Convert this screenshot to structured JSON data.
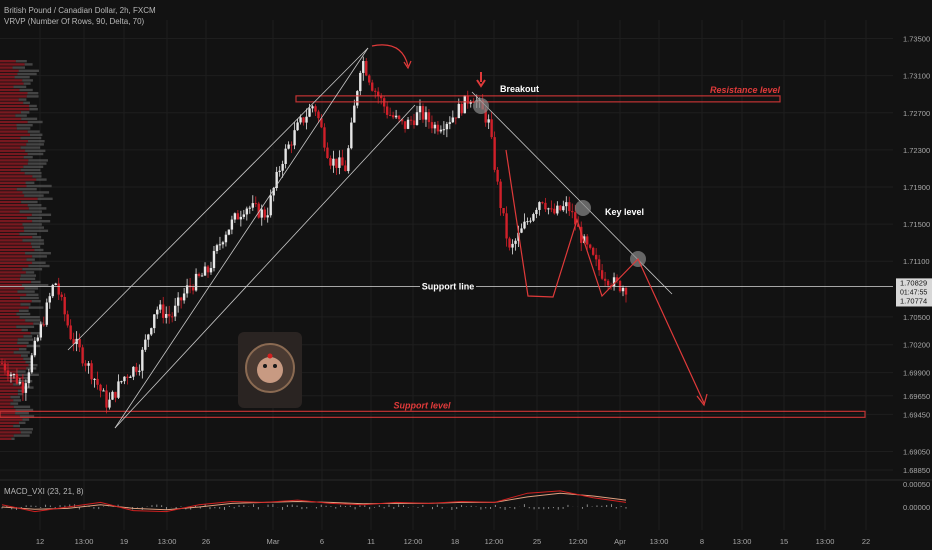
{
  "header": {
    "symbol_line": "British Pound / Canadian Dollar, 2h, FXCM",
    "indicator_line": "VRVP (Number Of Rows, 90, Delta, 70)",
    "macd_label": "MACD_VXI (23, 21, 8)"
  },
  "colors": {
    "background": "#121212",
    "up_candle": "#e6e6e6",
    "down_candle": "#d0202a",
    "annotation_red": "#e03a3a",
    "trend_line": "#c8c8c8",
    "grid": "#1e1e1e"
  },
  "chart_data": {
    "type": "candlestick",
    "ylim": [
      1.6885,
      1.737
    ],
    "y_ticks": [
      "1.73500",
      "1.73100",
      "1.72700",
      "1.72300",
      "1.71900",
      "1.71500",
      "1.71100",
      "1.70500",
      "1.70200",
      "1.69900",
      "1.69650",
      "1.69450",
      "1.69050",
      "1.68850"
    ],
    "x_ticks": [
      "12",
      "13:00",
      "19",
      "13:00",
      "26",
      "Mar",
      "6",
      "11",
      "12:00",
      "18",
      "12:00",
      "25",
      "12:00",
      "Apr",
      "13:00",
      "8",
      "13:00",
      "15",
      "13:00",
      "22"
    ],
    "price_labels": {
      "current": "1.70829",
      "countdown": "01:47:55",
      "low": "1.70774"
    },
    "price_path": [
      [
        0,
        1.7
      ],
      [
        4,
        1.6975
      ],
      [
        8,
        1.705
      ],
      [
        10,
        1.709
      ],
      [
        13,
        1.703
      ],
      [
        17,
        1.699
      ],
      [
        20,
        1.6955
      ],
      [
        23,
        1.6985
      ],
      [
        26,
        1.7
      ],
      [
        29,
        1.706
      ],
      [
        32,
        1.705
      ],
      [
        35,
        1.708
      ],
      [
        39,
        1.71
      ],
      [
        42,
        1.714
      ],
      [
        46,
        1.717
      ],
      [
        50,
        1.716
      ],
      [
        53,
        1.722
      ],
      [
        56,
        1.7255
      ],
      [
        59,
        1.728
      ],
      [
        62,
        1.722
      ],
      [
        65,
        1.721
      ],
      [
        68,
        1.733
      ],
      [
        70,
        1.73
      ],
      [
        73,
        1.727
      ],
      [
        76,
        1.7255
      ],
      [
        79,
        1.727
      ],
      [
        82,
        1.7255
      ],
      [
        85,
        1.7265
      ],
      [
        89,
        1.729
      ],
      [
        92,
        1.726
      ],
      [
        94,
        1.718
      ],
      [
        96,
        1.712
      ],
      [
        99,
        1.715
      ],
      [
        102,
        1.718
      ],
      [
        104,
        1.716
      ],
      [
        107,
        1.717
      ],
      [
        110,
        1.713
      ],
      [
        113,
        1.71
      ],
      [
        116,
        1.7085
      ],
      [
        118,
        1.7082
      ]
    ],
    "annotations": {
      "resistance": {
        "label": "Resistance level",
        "y": 1.7285
      },
      "support": {
        "label": "Support level",
        "y": 1.6945
      },
      "support_line": {
        "label": "Support line",
        "y": 1.70829
      },
      "breakout": {
        "label": "Breakout"
      },
      "key_level": {
        "label": "Key level"
      }
    },
    "macd": {
      "ylim": [
        -0.005,
        0.005
      ],
      "y_ticks": [
        "0.00050",
        "0.00000"
      ],
      "macd_line": [
        5e-05,
        -0.0001,
        0.0,
        0.0001,
        -8e-05,
        -0.0001,
        5e-05,
        0.00012,
        0.0001,
        0.00015,
        8e-05,
        5e-05,
        0.0001,
        8e-05,
        0.00012,
        0.0001,
        0.0003,
        0.00035,
        0.0002,
        0.0001
      ],
      "signal_line": [
        0.0,
        -5e-05,
        -3e-05,
        5e-05,
        -3e-05,
        -6e-05,
        0.0,
        8e-05,
        0.0001,
        0.00012,
        0.0001,
        7e-05,
        8e-05,
        8e-05,
        0.0001,
        0.0001,
        0.00022,
        0.0003,
        0.00024,
        0.00015
      ]
    }
  }
}
